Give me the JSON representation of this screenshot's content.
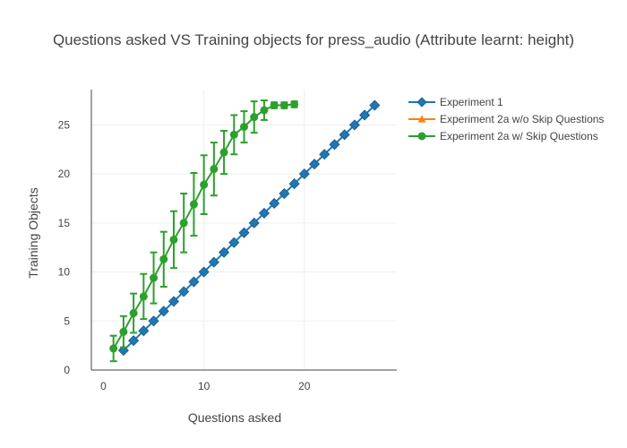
{
  "chart_data": {
    "type": "line",
    "title": "Questions asked VS Training objects for press_audio (Attribute learnt: height)",
    "xlabel": "Questions asked",
    "ylabel": "Training Objects",
    "xlim": [
      -1.2,
      29.2
    ],
    "ylim": [
      0,
      28.6
    ],
    "xticks": [
      0,
      10,
      20
    ],
    "yticks": [
      0,
      5,
      10,
      15,
      20,
      25
    ],
    "grid": true,
    "legend_position": "top-right",
    "series": [
      {
        "name": "Experiment 1",
        "color": "#1f77b4",
        "marker": "diamond",
        "x": [
          2,
          3,
          4,
          5,
          6,
          7,
          8,
          9,
          10,
          11,
          12,
          13,
          14,
          15,
          16,
          17,
          18,
          19,
          20,
          21,
          22,
          23,
          24,
          25,
          26,
          27
        ],
        "y": [
          2,
          3,
          4,
          5,
          6,
          7,
          8,
          9,
          10,
          11,
          12,
          13,
          14,
          15,
          16,
          17,
          18,
          19,
          20,
          21,
          22,
          23,
          24,
          25,
          26,
          27
        ]
      },
      {
        "name": "Experiment 2a w/o Skip Questions",
        "color": "#ff7f0e",
        "marker": "triangle-up",
        "x": [],
        "y": []
      },
      {
        "name": "Experiment 2a w/ Skip Questions",
        "color": "#2ca02c",
        "marker": "circle",
        "x": [
          1,
          2,
          3,
          4,
          5,
          6,
          7,
          8,
          9,
          10,
          11,
          12,
          13,
          14,
          15,
          16,
          17,
          18,
          19
        ],
        "y": [
          2.2,
          3.9,
          5.8,
          7.5,
          9.4,
          11.3,
          13.3,
          15.0,
          16.9,
          18.9,
          20.5,
          22.2,
          24.0,
          24.8,
          25.8,
          26.5,
          27.0,
          27.0,
          27.1
        ],
        "error": [
          1.3,
          1.6,
          2.0,
          2.3,
          2.6,
          2.8,
          2.9,
          3.0,
          3.2,
          3.0,
          2.7,
          2.2,
          2.0,
          1.6,
          1.6,
          1.0,
          0.3,
          0.3,
          0.3
        ]
      }
    ]
  }
}
